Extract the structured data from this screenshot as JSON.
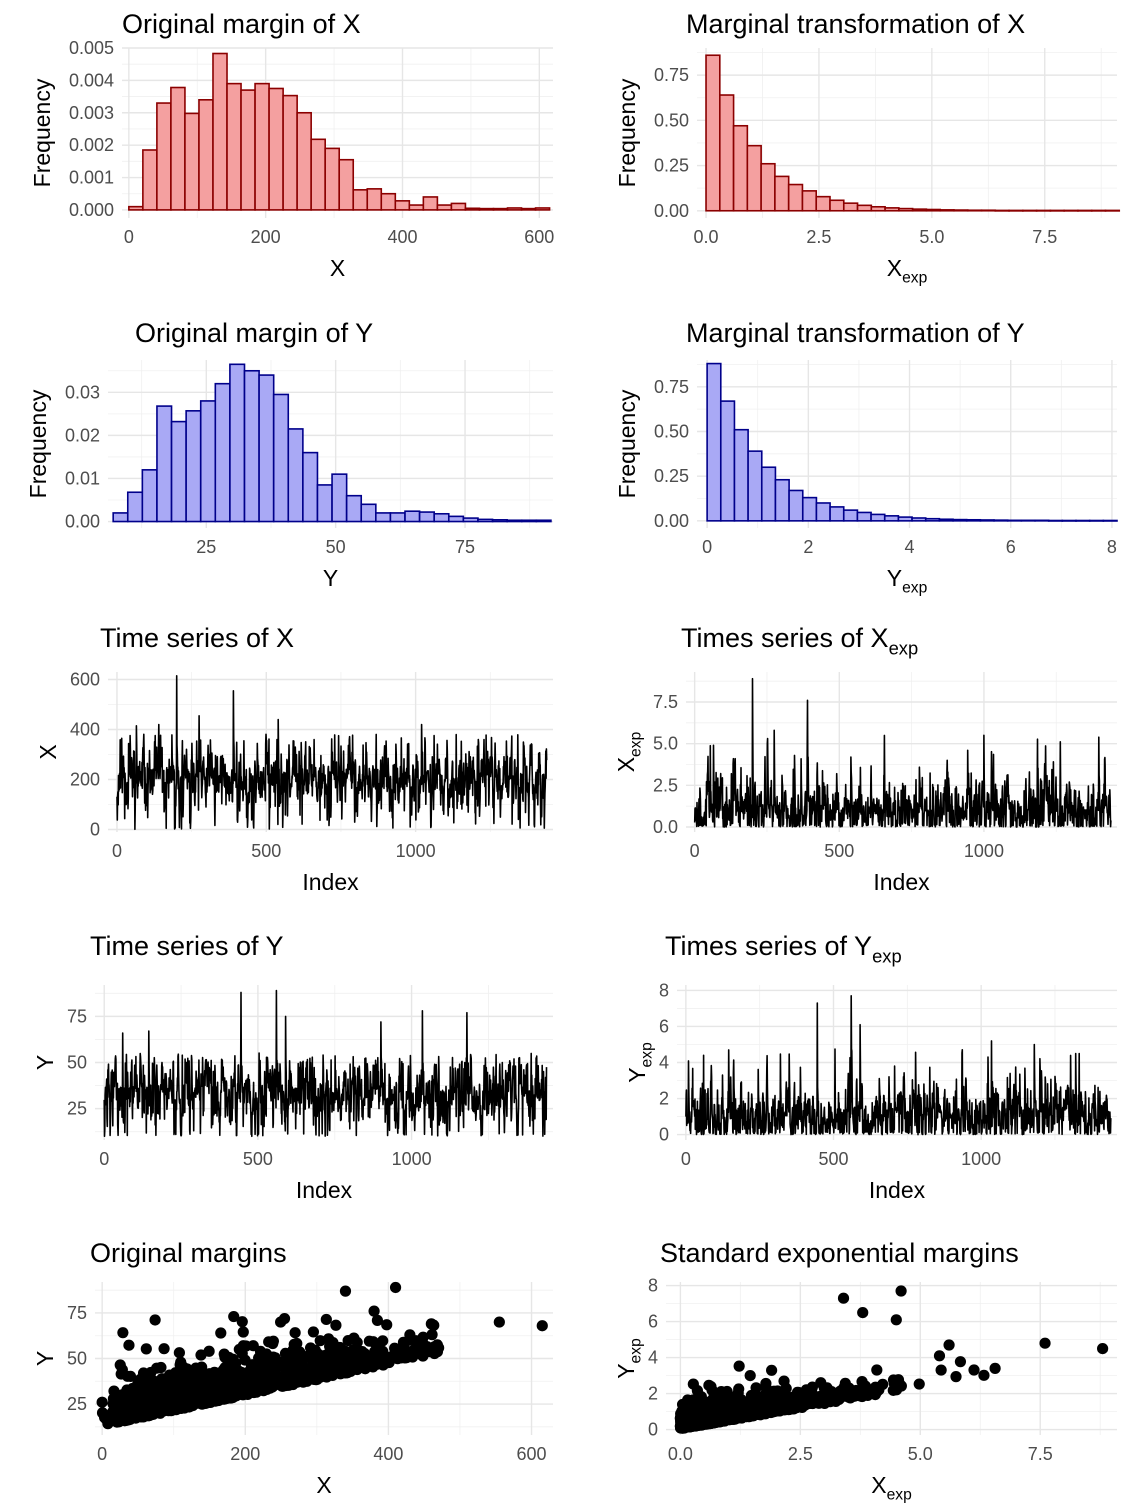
{
  "chart_data": [
    {
      "id": "p1",
      "type": "histogram",
      "title": "Original margin of X",
      "xlabel": "X",
      "ylabel": "Frequency",
      "xlim": [
        -10,
        620
      ],
      "ylim": [
        -0.00025,
        0.005
      ],
      "xticks": [
        0,
        200,
        400,
        600
      ],
      "yticks": [
        0,
        0.001,
        0.002,
        0.003,
        0.004,
        0.005
      ],
      "ytick_labels": [
        "0.000",
        "0.001",
        "0.002",
        "0.003",
        "0.004",
        "0.005"
      ],
      "bin_start": 0,
      "bin_width": 20.5,
      "values": [
        0.0001,
        0.00185,
        0.0033,
        0.00378,
        0.00298,
        0.0034,
        0.00483,
        0.0039,
        0.0037,
        0.0039,
        0.00375,
        0.00353,
        0.003,
        0.00218,
        0.0019,
        0.00155,
        0.00062,
        0.00065,
        0.0005,
        0.00028,
        0.00015,
        0.0004,
        0.00015,
        0.0002,
        5e-05,
        4e-05,
        4e-05,
        6e-05,
        4e-05,
        6e-05
      ],
      "fill": "#f4a0a0",
      "stroke": "#8b0000",
      "grid": true
    },
    {
      "id": "p2",
      "type": "histogram",
      "title": "Marginal transformation of X",
      "xlabel": "X",
      "xlabel_sub": "exp",
      "ylabel": "Frequency",
      "xlim": [
        -0.2,
        9.1
      ],
      "ylim": [
        -0.04,
        0.9
      ],
      "xticks": [
        0,
        2.5,
        5,
        7.5
      ],
      "xtick_labels": [
        "0.0",
        "2.5",
        "5.0",
        "7.5"
      ],
      "yticks": [
        0,
        0.25,
        0.5,
        0.75
      ],
      "ytick_labels": [
        "0.00",
        "0.25",
        "0.50",
        "0.75"
      ],
      "bin_start": 0,
      "bin_width": 0.305,
      "values": [
        0.86,
        0.64,
        0.47,
        0.36,
        0.26,
        0.19,
        0.145,
        0.11,
        0.078,
        0.058,
        0.042,
        0.03,
        0.022,
        0.016,
        0.012,
        0.009,
        0.007,
        0.005,
        0.004,
        0.003,
        0.003,
        0.002,
        0.002,
        0.002,
        0.002,
        0.002,
        0.002,
        0.002,
        0.002,
        0.002
      ],
      "fill": "#f4a0a0",
      "stroke": "#8b0000",
      "grid": true
    },
    {
      "id": "p3",
      "type": "histogram",
      "title": "Original margin of Y",
      "xlabel": "Y",
      "ylabel": "Frequency",
      "xlim": [
        6,
        92
      ],
      "ylim": [
        -0.0015,
        0.0375
      ],
      "xticks": [
        25,
        50,
        75
      ],
      "yticks": [
        0,
        0.01,
        0.02,
        0.03
      ],
      "ytick_labels": [
        "0.00",
        "0.01",
        "0.02",
        "0.03"
      ],
      "bin_start": 7,
      "bin_width": 2.82,
      "values": [
        0.002,
        0.0068,
        0.012,
        0.0268,
        0.0232,
        0.0257,
        0.028,
        0.032,
        0.0365,
        0.035,
        0.034,
        0.0295,
        0.0215,
        0.016,
        0.0085,
        0.011,
        0.006,
        0.004,
        0.002,
        0.002,
        0.0024,
        0.0022,
        0.0018,
        0.0012,
        0.0008,
        0.0005,
        0.0004,
        0.0003,
        0.0003,
        0.0003
      ],
      "fill": "#a9a9f5",
      "stroke": "#00008b",
      "grid": true
    },
    {
      "id": "p4",
      "type": "histogram",
      "title": "Marginal transformation of Y",
      "xlabel": "Y",
      "xlabel_sub": "exp",
      "ylabel": "Frequency",
      "xlim": [
        -0.2,
        8.1
      ],
      "ylim": [
        -0.04,
        0.9
      ],
      "xticks": [
        0,
        2,
        4,
        6,
        8
      ],
      "yticks": [
        0,
        0.25,
        0.5,
        0.75
      ],
      "ytick_labels": [
        "0.00",
        "0.25",
        "0.50",
        "0.75"
      ],
      "bin_start": 0,
      "bin_width": 0.27,
      "values": [
        0.88,
        0.67,
        0.51,
        0.39,
        0.3,
        0.23,
        0.17,
        0.13,
        0.1,
        0.078,
        0.06,
        0.047,
        0.036,
        0.028,
        0.021,
        0.016,
        0.012,
        0.009,
        0.007,
        0.006,
        0.005,
        0.004,
        0.003,
        0.003,
        0.003,
        0.002,
        0.002,
        0.002,
        0.002,
        0.002
      ],
      "fill": "#a9a9f5",
      "stroke": "#00008b",
      "grid": true
    },
    {
      "id": "p5",
      "type": "line",
      "title": "Time series of X",
      "xlabel": "Index",
      "ylabel": "X",
      "xlim": [
        -30,
        1460
      ],
      "ylim": [
        -10,
        630
      ],
      "xticks": [
        0,
        500,
        1000
      ],
      "yticks": [
        0,
        200,
        400,
        600
      ],
      "series": [
        {
          "n": 1440,
          "base": 195,
          "spread": 55,
          "max": 615,
          "min": 0,
          "seed": 11,
          "spikes": [
            [
              200,
              615
            ],
            [
              390,
              555
            ],
            [
              275,
              455
            ],
            [
              540,
              440
            ],
            [
              1020,
              420
            ],
            [
              65,
              415
            ],
            [
              140,
              420
            ],
            [
              1210,
              360
            ]
          ]
        }
      ],
      "stroke": "#000000",
      "grid": true
    },
    {
      "id": "p6",
      "type": "line",
      "title": "Times series of X",
      "title_sub": "exp",
      "xlabel": "Index",
      "ylabel": "X",
      "ylabel_sub": "exp",
      "xlim": [
        -30,
        1460
      ],
      "ylim": [
        -0.3,
        9.3
      ],
      "xticks": [
        0,
        500,
        1000
      ],
      "xtick_labels": [
        "0",
        "500",
        "1000"
      ],
      "yticks": [
        0,
        2.5,
        5,
        7.5
      ],
      "ytick_labels": [
        "0.0",
        "2.5",
        "5.0",
        "7.5"
      ],
      "series": [
        {
          "n": 1440,
          "base": 0.95,
          "spread": 0.75,
          "max": 8.9,
          "min": 0,
          "seed": 23,
          "spikes": [
            [
              200,
              8.9
            ],
            [
              390,
              7.6
            ],
            [
              275,
              5.8
            ],
            [
              1000,
              5.5
            ],
            [
              540,
              4.2
            ],
            [
              65,
              4.9
            ],
            [
              140,
              4.1
            ],
            [
              1210,
              3.8
            ]
          ]
        }
      ],
      "stroke": "#000000",
      "grid": true
    },
    {
      "id": "p7",
      "type": "line",
      "title": "Time series of Y",
      "xlabel": "Index",
      "ylabel": "Y",
      "xlim": [
        -30,
        1460
      ],
      "ylim": [
        8,
        92
      ],
      "xticks": [
        0,
        500,
        1000
      ],
      "yticks": [
        25,
        50,
        75
      ],
      "series": [
        {
          "n": 1440,
          "base": 33,
          "spread": 8,
          "max": 89,
          "min": 10,
          "seed": 37,
          "spikes": [
            [
              445,
              88
            ],
            [
              560,
              89
            ],
            [
              1035,
              78
            ],
            [
              1180,
              77
            ],
            [
              60,
              66
            ],
            [
              145,
              67
            ],
            [
              590,
              75
            ],
            [
              900,
              72
            ]
          ]
        }
      ],
      "stroke": "#000000",
      "grid": true
    },
    {
      "id": "p8",
      "type": "line",
      "title": "Times series of Y",
      "title_sub": "exp",
      "xlabel": "Index",
      "ylabel": "Y",
      "ylabel_sub": "exp",
      "xlim": [
        -30,
        1460
      ],
      "ylim": [
        -0.3,
        8.3
      ],
      "xticks": [
        0,
        500,
        1000
      ],
      "yticks": [
        0,
        2,
        4,
        6,
        8
      ],
      "series": [
        {
          "n": 1440,
          "base": 1.0,
          "spread": 0.8,
          "max": 7.7,
          "min": 0,
          "seed": 41,
          "spikes": [
            [
              445,
              7.3
            ],
            [
              560,
              7.7
            ],
            [
              1035,
              5.2
            ],
            [
              1180,
              5.0
            ],
            [
              60,
              4.4
            ],
            [
              145,
              4.7
            ],
            [
              590,
              6.1
            ],
            [
              1320,
              4.5
            ]
          ]
        }
      ],
      "stroke": "#000000",
      "grid": true
    },
    {
      "id": "p9",
      "type": "scatter",
      "title": "Original margins",
      "xlabel": "X",
      "ylabel": "Y",
      "xlim": [
        -10,
        630
      ],
      "ylim": [
        8,
        92
      ],
      "xticks": [
        0,
        200,
        400,
        600
      ],
      "yticks": [
        25,
        50,
        75
      ],
      "points": {
        "n": 1400,
        "seed": 53,
        "xmode": "gamma",
        "xscale": 180,
        "slope": 0.085,
        "intercept": 13,
        "noise": 9,
        "extra": [
          [
            0,
            26
          ],
          [
            555,
            70
          ],
          [
            615,
            68
          ],
          [
            410,
            89
          ],
          [
            340,
            87
          ],
          [
            460,
            69
          ],
          [
            380,
            76
          ],
          [
            430,
            63
          ]
        ]
      },
      "color": "#000000",
      "grid": true
    },
    {
      "id": "p10",
      "type": "scatter",
      "title": "Standard exponential margins",
      "xlabel": "X",
      "xlabel_sub": "exp",
      "ylabel": "Y",
      "ylabel_sub": "exp",
      "xlim": [
        -0.3,
        9.1
      ],
      "ylim": [
        -0.3,
        8.2
      ],
      "xticks": [
        0,
        2.5,
        5,
        7.5
      ],
      "xtick_labels": [
        "0.0",
        "2.5",
        "5.0",
        "7.5"
      ],
      "yticks": [
        0,
        2,
        4,
        6,
        8
      ],
      "points": {
        "n": 1400,
        "seed": 67,
        "xmode": "exp",
        "xscale": 1,
        "slope": 0.55,
        "intercept": 0.05,
        "noise": 0.55,
        "extra": [
          [
            8.8,
            4.5
          ],
          [
            7.6,
            4.8
          ],
          [
            4.6,
            7.7
          ],
          [
            3.4,
            7.3
          ],
          [
            3.8,
            6.5
          ],
          [
            4.5,
            6.1
          ],
          [
            5.6,
            4.7
          ],
          [
            5.4,
            4.1
          ]
        ]
      },
      "color": "#000000",
      "grid": true
    }
  ]
}
